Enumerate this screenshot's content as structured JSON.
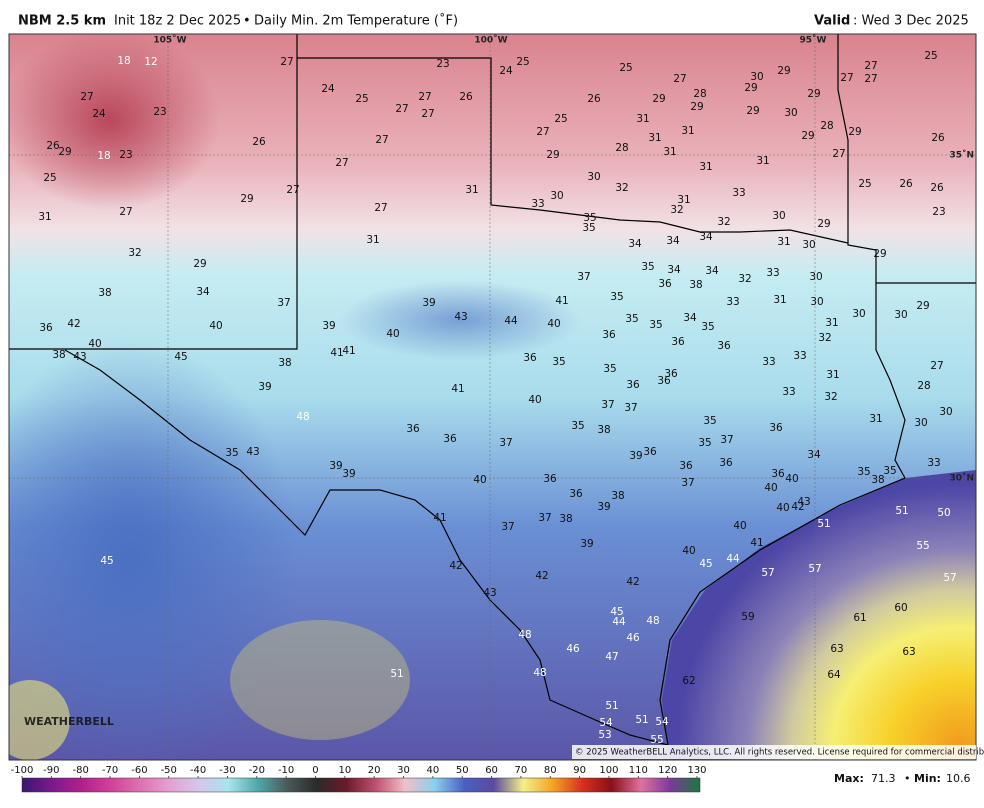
{
  "header": {
    "title": "NBM 2.5 km",
    "subtitle": "Init 18z 2 Dec 2025",
    "separator": "•",
    "product": "Daily Min. 2m Temperature (˚F)",
    "valid_label": "Valid",
    "valid_value": ": Wed 3 Dec 2025"
  },
  "map": {
    "longitude_labels": [
      "105˚W",
      "100˚W",
      "95˚W"
    ],
    "latitude_labels": [
      "35˚N",
      "30˚N"
    ],
    "watermark": "WEATHERBELL",
    "copyright": "© 2025 WeatherBELL Analytics, LLC. All rights reserved. License required for commercial distribution.",
    "temperature_labels": [
      18,
      12,
      27,
      24,
      23,
      27,
      23,
      24,
      25,
      27,
      27,
      27,
      26,
      24,
      25,
      25,
      27,
      30,
      29,
      29,
      28,
      29,
      29,
      26,
      31,
      29,
      30,
      29,
      27,
      27,
      27,
      25,
      26,
      29,
      18,
      23,
      26,
      27,
      25,
      27,
      29,
      28,
      31,
      31,
      31,
      28,
      29,
      29,
      27,
      26,
      31,
      31,
      25,
      27,
      30,
      32,
      33,
      25,
      26,
      26,
      23,
      31,
      30,
      33,
      27,
      29,
      27,
      27,
      31,
      31,
      32,
      35,
      35,
      32,
      30,
      29,
      34,
      34,
      34,
      31,
      30,
      29,
      31,
      32,
      29,
      35,
      34,
      34,
      37,
      33,
      32,
      30,
      38,
      34,
      37,
      39,
      41,
      35,
      36,
      38,
      33,
      31,
      30,
      29,
      36,
      42,
      40,
      39,
      43,
      44,
      40,
      35,
      35,
      34,
      35,
      31,
      30,
      30,
      40,
      38,
      43,
      45,
      40,
      41,
      41,
      36,
      36,
      36,
      32,
      36,
      35,
      38,
      35,
      33,
      33,
      27,
      28,
      39,
      41,
      36,
      36,
      36,
      31,
      33,
      32,
      40,
      37,
      37,
      48,
      36,
      36,
      35,
      38,
      35,
      36,
      31,
      30,
      30,
      37,
      35,
      37,
      35,
      43,
      39,
      36,
      34,
      39,
      39,
      36,
      36,
      33,
      40,
      36,
      37,
      36,
      40,
      35,
      38,
      35,
      36,
      38,
      40,
      39,
      41,
      37,
      38,
      37,
      40,
      42,
      43,
      51,
      51,
      50,
      40,
      45,
      39,
      41,
      40,
      45,
      44,
      55,
      42,
      42,
      57,
      57,
      57,
      42,
      43,
      45,
      44,
      48,
      59,
      61,
      60,
      46,
      48,
      46,
      47,
      63,
      63,
      51,
      48,
      62,
      64,
      51,
      51,
      54,
      54,
      53,
      55
    ]
  },
  "colorbar": {
    "ticks": [
      -100,
      -90,
      -80,
      -70,
      -60,
      -50,
      -40,
      -30,
      -20,
      -10,
      0,
      10,
      20,
      30,
      40,
      50,
      60,
      70,
      80,
      90,
      100,
      110,
      120,
      130
    ]
  },
  "footer": {
    "max_label": "Max:",
    "max": 71.3,
    "separator": "•",
    "min_label": "Min:",
    "min": 10.6
  }
}
